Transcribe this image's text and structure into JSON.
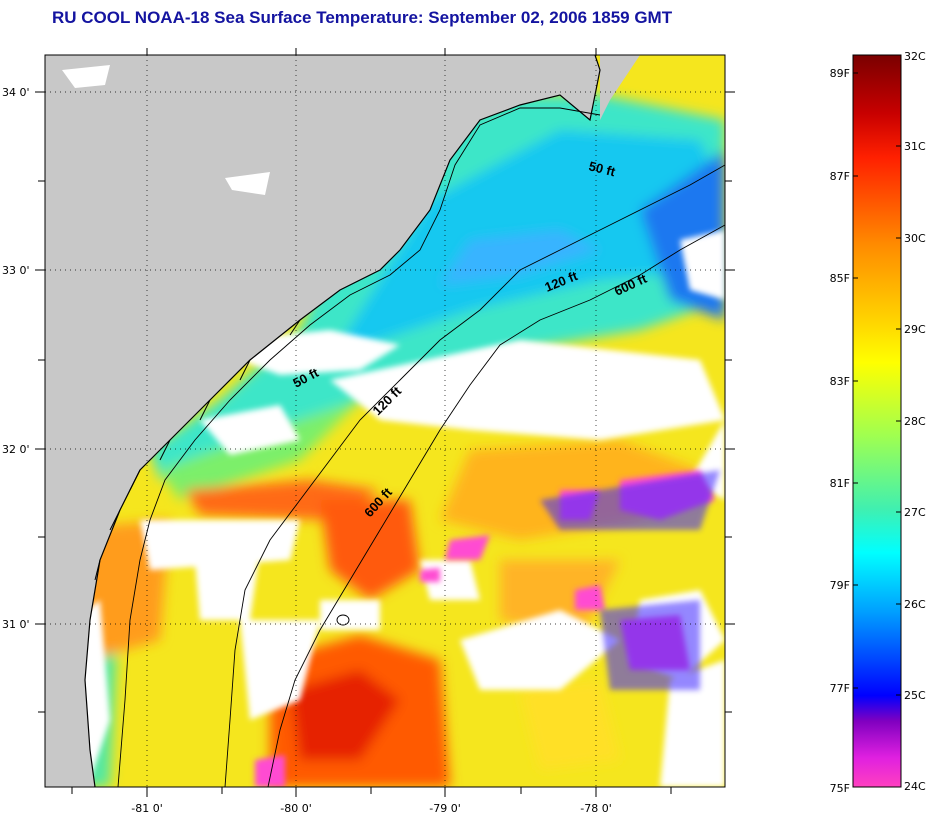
{
  "title": "RU COOL  NOAA-18  Sea Surface Temperature:  September 02, 2006 1859 GMT",
  "map": {
    "lat_labels": [
      "34 0'",
      "33 0'",
      "32 0'",
      "31 0'"
    ],
    "lon_labels": [
      "-81 0'",
      "-80 0'",
      "-79 0'",
      "-78 0'"
    ],
    "contours": [
      "50 ft",
      "120 ft",
      "600 ft",
      "50 ft",
      "120 ft",
      "600 ft"
    ]
  },
  "colorbar": {
    "celsius": [
      "32C",
      "31C",
      "30C",
      "29C",
      "28C",
      "27C",
      "26C",
      "25C",
      "24C"
    ],
    "fahrenheit": [
      "89F",
      "87F",
      "85F",
      "83F",
      "81F",
      "79F",
      "77F",
      "75F"
    ]
  },
  "colors": {
    "land": "#c8c8c8",
    "cloud": "#ffffff",
    "title": "#1414a0"
  }
}
